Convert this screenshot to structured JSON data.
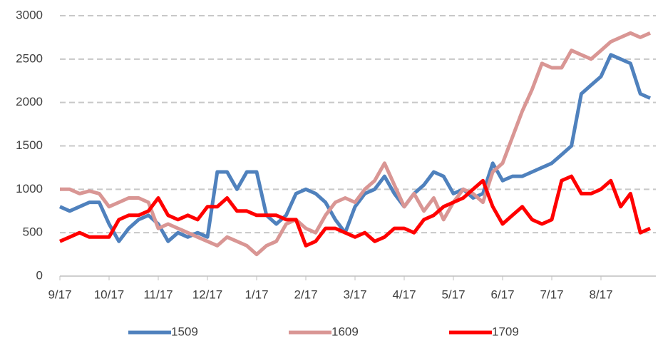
{
  "chart_data": {
    "type": "line",
    "categories": [
      "9/17",
      null,
      null,
      null,
      null,
      "10/17",
      null,
      null,
      null,
      null,
      "11/17",
      null,
      null,
      null,
      null,
      "12/17",
      null,
      null,
      null,
      null,
      "1/17",
      null,
      null,
      null,
      null,
      "2/17",
      null,
      null,
      null,
      null,
      "3/17",
      null,
      null,
      null,
      null,
      "4/17",
      null,
      null,
      null,
      null,
      "5/17",
      null,
      null,
      null,
      null,
      "6/17",
      null,
      null,
      null,
      null,
      "7/17",
      null,
      null,
      null,
      null,
      "8/17",
      null,
      null,
      null,
      null,
      null
    ],
    "series": [
      {
        "name": "1509",
        "color": "#4f81bd",
        "values": [
          800,
          750,
          800,
          850,
          850,
          600,
          400,
          550,
          650,
          700,
          600,
          400,
          500,
          450,
          500,
          450,
          1200,
          1200,
          1000,
          1200,
          1200,
          700,
          600,
          700,
          950,
          1000,
          950,
          850,
          650,
          500,
          800,
          950,
          1000,
          1150,
          950,
          800,
          950,
          1050,
          1200,
          1150,
          950,
          1000,
          900,
          950,
          1300,
          1100,
          1150,
          1150,
          1200,
          1250,
          1300,
          1400,
          1500,
          2100,
          2200,
          2300,
          2550,
          2500,
          2450,
          2100,
          2050
        ]
      },
      {
        "name": "1609",
        "color": "#d99694",
        "values": [
          1000,
          1000,
          950,
          980,
          950,
          800,
          850,
          900,
          900,
          850,
          550,
          600,
          550,
          500,
          450,
          400,
          350,
          450,
          400,
          350,
          250,
          350,
          400,
          600,
          650,
          550,
          500,
          700,
          850,
          900,
          850,
          1000,
          1100,
          1300,
          1050,
          800,
          950,
          750,
          900,
          650,
          850,
          1000,
          950,
          850,
          1200,
          1300,
          1600,
          1900,
          2150,
          2450,
          2400,
          2400,
          2600,
          2550,
          2500,
          2600,
          2700,
          2750,
          2800,
          2750,
          2800
        ]
      },
      {
        "name": "1709",
        "color": "#ff0000",
        "values": [
          400,
          450,
          500,
          450,
          450,
          450,
          650,
          700,
          700,
          750,
          900,
          700,
          650,
          700,
          650,
          800,
          800,
          900,
          750,
          750,
          700,
          700,
          700,
          650,
          650,
          350,
          400,
          550,
          550,
          500,
          450,
          500,
          400,
          450,
          550,
          550,
          500,
          650,
          700,
          800,
          850,
          900,
          1000,
          1100,
          800,
          600,
          700,
          800,
          650,
          600,
          650,
          1100,
          1150,
          950,
          950,
          1000,
          1100,
          800,
          950,
          500,
          550
        ]
      }
    ],
    "ylim": [
      0,
      3000
    ],
    "yticks": [
      0,
      500,
      1000,
      1500,
      2000,
      2500,
      3000
    ],
    "grid": true,
    "legend": "bottom"
  }
}
